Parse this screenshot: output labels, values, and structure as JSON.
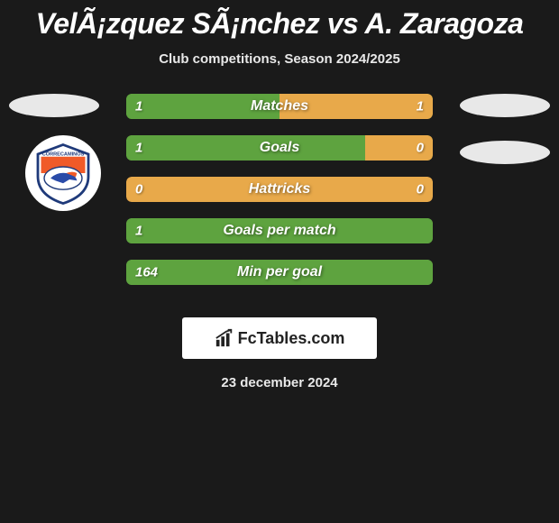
{
  "title": "VelÃ¡zquez SÃ¡nchez vs A. Zaragoza",
  "subtitle": "Club competitions, Season 2024/2025",
  "date": "23 december 2024",
  "logo_text": "FcTables.com",
  "colors": {
    "bg": "#1a1a1a",
    "bar_green": "#5ea33f",
    "bar_orange": "#e8a94a",
    "oval": "#e8e8e8",
    "text": "#ffffff"
  },
  "bars": [
    {
      "label": "Matches",
      "left_val": "1",
      "right_val": "1",
      "left_pct": 50,
      "right_pct": 50,
      "left_color": "#5ea33f",
      "right_color": "#e8a94a"
    },
    {
      "label": "Goals",
      "left_val": "1",
      "right_val": "0",
      "left_pct": 78,
      "right_pct": 22,
      "left_color": "#5ea33f",
      "right_color": "#e8a94a"
    },
    {
      "label": "Hattricks",
      "left_val": "0",
      "right_val": "0",
      "left_pct": 0,
      "right_pct": 0,
      "left_color": "#5ea33f",
      "right_color": "#e8a94a",
      "bg_color": "#e8a94a"
    },
    {
      "label": "Goals per match",
      "left_val": "1",
      "right_val": "",
      "left_pct": 100,
      "right_pct": 0,
      "left_color": "#5ea33f",
      "right_color": "#e8a94a"
    },
    {
      "label": "Min per goal",
      "left_val": "164",
      "right_val": "",
      "left_pct": 100,
      "right_pct": 0,
      "left_color": "#5ea33f",
      "right_color": "#e8a94a"
    }
  ]
}
